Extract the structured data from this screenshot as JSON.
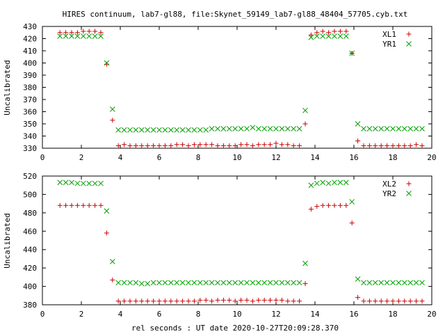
{
  "title": "HIRES continuum, lab7-gl88, file:Skynet_59149_lab7-gl88_48404_57705.cyb.txt",
  "xlabel": "rel seconds : UT date 2020-10-27T20:09:28.370",
  "colors": {
    "series_red": "#cc0000",
    "series_green": "#00a000",
    "axes": "#000000",
    "background": "#ffffff"
  },
  "chart_data": [
    {
      "type": "scatter",
      "ylabel": "Uncalibrated",
      "xlim": [
        0,
        20
      ],
      "ylim": [
        330,
        430
      ],
      "xticks": [
        0,
        2,
        4,
        6,
        8,
        10,
        12,
        14,
        16,
        18,
        20
      ],
      "yticks": [
        330,
        340,
        350,
        360,
        370,
        380,
        390,
        400,
        410,
        420,
        430
      ],
      "legend_position": "top-right",
      "grid": false,
      "series": [
        {
          "name": "XL1",
          "marker": "plus",
          "color": "#cc0000",
          "points": [
            [
              0.9,
              425
            ],
            [
              1.2,
              425
            ],
            [
              1.5,
              425
            ],
            [
              1.8,
              425
            ],
            [
              2.1,
              426
            ],
            [
              2.4,
              426
            ],
            [
              2.7,
              426
            ],
            [
              3.0,
              425
            ],
            [
              3.3,
              399
            ],
            [
              3.6,
              353
            ],
            [
              3.9,
              332
            ],
            [
              4.2,
              333
            ],
            [
              4.5,
              332
            ],
            [
              4.8,
              332
            ],
            [
              5.1,
              332
            ],
            [
              5.4,
              332
            ],
            [
              5.7,
              332
            ],
            [
              6.0,
              332
            ],
            [
              6.3,
              332
            ],
            [
              6.6,
              332
            ],
            [
              6.9,
              333
            ],
            [
              7.2,
              333
            ],
            [
              7.5,
              332
            ],
            [
              7.8,
              333
            ],
            [
              8.1,
              333
            ],
            [
              8.4,
              333
            ],
            [
              8.7,
              333
            ],
            [
              9.0,
              332
            ],
            [
              9.3,
              332
            ],
            [
              9.6,
              332
            ],
            [
              9.9,
              332
            ],
            [
              10.2,
              333
            ],
            [
              10.5,
              333
            ],
            [
              10.8,
              332
            ],
            [
              11.1,
              333
            ],
            [
              11.4,
              333
            ],
            [
              11.7,
              333
            ],
            [
              12.0,
              334
            ],
            [
              12.3,
              333
            ],
            [
              12.6,
              333
            ],
            [
              12.9,
              332
            ],
            [
              13.2,
              332
            ],
            [
              13.5,
              350
            ],
            [
              13.8,
              423
            ],
            [
              14.1,
              425
            ],
            [
              14.4,
              426
            ],
            [
              14.7,
              425
            ],
            [
              15.0,
              426
            ],
            [
              15.3,
              426
            ],
            [
              15.6,
              426
            ],
            [
              15.9,
              408
            ],
            [
              16.2,
              336
            ],
            [
              16.5,
              332
            ],
            [
              16.8,
              332
            ],
            [
              17.1,
              332
            ],
            [
              17.4,
              332
            ],
            [
              17.7,
              332
            ],
            [
              18.0,
              332
            ],
            [
              18.3,
              332
            ],
            [
              18.6,
              332
            ],
            [
              18.9,
              332
            ],
            [
              19.2,
              333
            ],
            [
              19.5,
              332
            ]
          ]
        },
        {
          "name": "YR1",
          "marker": "cross",
          "color": "#00a000",
          "points": [
            [
              0.9,
              422
            ],
            [
              1.2,
              422
            ],
            [
              1.5,
              422
            ],
            [
              1.8,
              422
            ],
            [
              2.1,
              422
            ],
            [
              2.4,
              422
            ],
            [
              2.7,
              422
            ],
            [
              3.0,
              422
            ],
            [
              3.3,
              400
            ],
            [
              3.6,
              362
            ],
            [
              3.9,
              345
            ],
            [
              4.2,
              345
            ],
            [
              4.5,
              345
            ],
            [
              4.8,
              345
            ],
            [
              5.1,
              345
            ],
            [
              5.4,
              345
            ],
            [
              5.7,
              345
            ],
            [
              6.0,
              345
            ],
            [
              6.3,
              345
            ],
            [
              6.6,
              345
            ],
            [
              6.9,
              345
            ],
            [
              7.2,
              345
            ],
            [
              7.5,
              345
            ],
            [
              7.8,
              345
            ],
            [
              8.1,
              345
            ],
            [
              8.4,
              345
            ],
            [
              8.7,
              346
            ],
            [
              9.0,
              346
            ],
            [
              9.3,
              346
            ],
            [
              9.6,
              346
            ],
            [
              9.9,
              346
            ],
            [
              10.2,
              346
            ],
            [
              10.5,
              346
            ],
            [
              10.8,
              347
            ],
            [
              11.1,
              346
            ],
            [
              11.4,
              346
            ],
            [
              11.7,
              346
            ],
            [
              12.0,
              346
            ],
            [
              12.3,
              346
            ],
            [
              12.6,
              346
            ],
            [
              12.9,
              346
            ],
            [
              13.2,
              346
            ],
            [
              13.5,
              361
            ],
            [
              13.8,
              421
            ],
            [
              14.1,
              422
            ],
            [
              14.4,
              422
            ],
            [
              14.7,
              422
            ],
            [
              15.0,
              422
            ],
            [
              15.3,
              422
            ],
            [
              15.6,
              422
            ],
            [
              15.9,
              408
            ],
            [
              16.2,
              350
            ],
            [
              16.5,
              346
            ],
            [
              16.8,
              346
            ],
            [
              17.1,
              346
            ],
            [
              17.4,
              346
            ],
            [
              17.7,
              346
            ],
            [
              18.0,
              346
            ],
            [
              18.3,
              346
            ],
            [
              18.6,
              346
            ],
            [
              18.9,
              346
            ],
            [
              19.2,
              346
            ],
            [
              19.5,
              346
            ]
          ]
        }
      ]
    },
    {
      "type": "scatter",
      "ylabel": "Uncalibrated",
      "xlim": [
        0,
        20
      ],
      "ylim": [
        380,
        520
      ],
      "xticks": [
        0,
        2,
        4,
        6,
        8,
        10,
        12,
        14,
        16,
        18,
        20
      ],
      "yticks": [
        380,
        400,
        420,
        440,
        460,
        480,
        500,
        520
      ],
      "legend_position": "top-right",
      "grid": false,
      "series": [
        {
          "name": "XL2",
          "marker": "plus",
          "color": "#cc0000",
          "points": [
            [
              0.9,
              488
            ],
            [
              1.2,
              488
            ],
            [
              1.5,
              488
            ],
            [
              1.8,
              488
            ],
            [
              2.1,
              488
            ],
            [
              2.4,
              488
            ],
            [
              2.7,
              488
            ],
            [
              3.0,
              488
            ],
            [
              3.3,
              458
            ],
            [
              3.6,
              407
            ],
            [
              3.9,
              384
            ],
            [
              4.2,
              384
            ],
            [
              4.5,
              384
            ],
            [
              4.8,
              384
            ],
            [
              5.1,
              384
            ],
            [
              5.4,
              384
            ],
            [
              5.7,
              384
            ],
            [
              6.0,
              384
            ],
            [
              6.3,
              384
            ],
            [
              6.6,
              384
            ],
            [
              6.9,
              384
            ],
            [
              7.2,
              384
            ],
            [
              7.5,
              384
            ],
            [
              7.8,
              384
            ],
            [
              8.1,
              385
            ],
            [
              8.4,
              385
            ],
            [
              8.7,
              384
            ],
            [
              9.0,
              385
            ],
            [
              9.3,
              385
            ],
            [
              9.6,
              385
            ],
            [
              9.9,
              384
            ],
            [
              10.2,
              385
            ],
            [
              10.5,
              385
            ],
            [
              10.8,
              384
            ],
            [
              11.1,
              385
            ],
            [
              11.4,
              385
            ],
            [
              11.7,
              385
            ],
            [
              12.0,
              385
            ],
            [
              12.3,
              385
            ],
            [
              12.6,
              384
            ],
            [
              12.9,
              384
            ],
            [
              13.2,
              384
            ],
            [
              13.5,
              403
            ],
            [
              13.8,
              484
            ],
            [
              14.1,
              487
            ],
            [
              14.4,
              488
            ],
            [
              14.7,
              488
            ],
            [
              15.0,
              488
            ],
            [
              15.3,
              488
            ],
            [
              15.6,
              488
            ],
            [
              15.9,
              469
            ],
            [
              16.2,
              388
            ],
            [
              16.5,
              384
            ],
            [
              16.8,
              384
            ],
            [
              17.1,
              384
            ],
            [
              17.4,
              384
            ],
            [
              17.7,
              384
            ],
            [
              18.0,
              384
            ],
            [
              18.3,
              384
            ],
            [
              18.6,
              384
            ],
            [
              18.9,
              384
            ],
            [
              19.2,
              384
            ],
            [
              19.5,
              384
            ]
          ]
        },
        {
          "name": "YR2",
          "marker": "cross",
          "color": "#00a000",
          "points": [
            [
              0.9,
              513
            ],
            [
              1.2,
              513
            ],
            [
              1.5,
              513
            ],
            [
              1.8,
              512
            ],
            [
              2.1,
              512
            ],
            [
              2.4,
              512
            ],
            [
              2.7,
              512
            ],
            [
              3.0,
              512
            ],
            [
              3.3,
              482
            ],
            [
              3.6,
              427
            ],
            [
              3.9,
              404
            ],
            [
              4.2,
              404
            ],
            [
              4.5,
              404
            ],
            [
              4.8,
              404
            ],
            [
              5.1,
              403
            ],
            [
              5.4,
              403
            ],
            [
              5.7,
              404
            ],
            [
              6.0,
              404
            ],
            [
              6.3,
              404
            ],
            [
              6.6,
              404
            ],
            [
              6.9,
              404
            ],
            [
              7.2,
              404
            ],
            [
              7.5,
              404
            ],
            [
              7.8,
              404
            ],
            [
              8.1,
              404
            ],
            [
              8.4,
              404
            ],
            [
              8.7,
              404
            ],
            [
              9.0,
              404
            ],
            [
              9.3,
              404
            ],
            [
              9.6,
              404
            ],
            [
              9.9,
              404
            ],
            [
              10.2,
              404
            ],
            [
              10.5,
              404
            ],
            [
              10.8,
              404
            ],
            [
              11.1,
              404
            ],
            [
              11.4,
              404
            ],
            [
              11.7,
              404
            ],
            [
              12.0,
              404
            ],
            [
              12.3,
              404
            ],
            [
              12.6,
              404
            ],
            [
              12.9,
              404
            ],
            [
              13.2,
              404
            ],
            [
              13.5,
              425
            ],
            [
              13.8,
              510
            ],
            [
              14.1,
              512
            ],
            [
              14.4,
              513
            ],
            [
              14.7,
              512
            ],
            [
              15.0,
              513
            ],
            [
              15.3,
              513
            ],
            [
              15.6,
              513
            ],
            [
              15.9,
              492
            ],
            [
              16.2,
              408
            ],
            [
              16.5,
              404
            ],
            [
              16.8,
              404
            ],
            [
              17.1,
              404
            ],
            [
              17.4,
              404
            ],
            [
              17.7,
              404
            ],
            [
              18.0,
              404
            ],
            [
              18.3,
              404
            ],
            [
              18.6,
              404
            ],
            [
              18.9,
              404
            ],
            [
              19.2,
              404
            ],
            [
              19.5,
              404
            ]
          ]
        }
      ]
    }
  ]
}
